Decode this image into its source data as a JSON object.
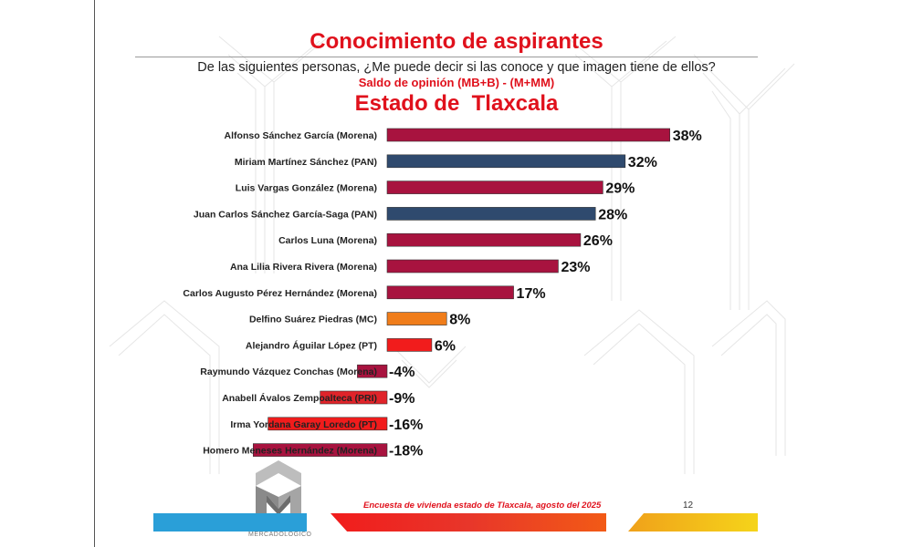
{
  "header": {
    "title": "Conocimiento de aspirantes",
    "question": "De las siguientes personas, ¿Me puede decir si las conoce y que imagen tiene de ellos?",
    "saldo": "Saldo de opinión (MB+B) - (M+MM)",
    "state": "Estado de  Tlaxcala"
  },
  "footer": {
    "survey": "Encuesta de vivienda estado de Tlaxcala, agosto del 2025",
    "page": "12",
    "logo_text": "MERCADOLÓGICO"
  },
  "colors": {
    "Morena": "#a8133f",
    "PAN": "#2f4a6e",
    "MC": "#f07d1a",
    "PT": "#f11c1c",
    "PRI": "#e0242a",
    "accent": "#e0111c"
  },
  "chart_data": {
    "type": "bar",
    "orientation": "horizontal",
    "categories": [
      "Alfonso Sánchez García (Morena)",
      "Miriam Martínez Sánchez (PAN)",
      "Luis Vargas González (Morena)",
      "Juan Carlos Sánchez García-Saga (PAN)",
      "Carlos Luna (Morena)",
      "Ana Lilia Rivera Rivera (Morena)",
      "Carlos Augusto Pérez Hernández (Morena)",
      "Delfino Suárez Piedras (MC)",
      "Alejandro Águilar López (PT)",
      "Raymundo Vázquez Conchas (Morena)",
      "Anabell Ávalos Zempoalteca (PRI)",
      "Irma Yordana Garay Loredo (PT)",
      "Homero Meneses Hernández (Morena)"
    ],
    "values": [
      38,
      32,
      29,
      28,
      26,
      23,
      17,
      8,
      6,
      -4,
      -9,
      -16,
      -18
    ],
    "value_labels": [
      "38%",
      "32%",
      "29%",
      "28%",
      "26%",
      "23%",
      "17%",
      "8%",
      "6%",
      "-4%",
      "-9%",
      "-16%",
      "-18%"
    ],
    "parties": [
      "Morena",
      "PAN",
      "Morena",
      "PAN",
      "Morena",
      "Morena",
      "Morena",
      "MC",
      "PT",
      "Morena",
      "PRI",
      "PT",
      "Morena"
    ],
    "unit": "%",
    "xlim": [
      -18,
      38
    ],
    "grid": false,
    "legend": "none"
  }
}
